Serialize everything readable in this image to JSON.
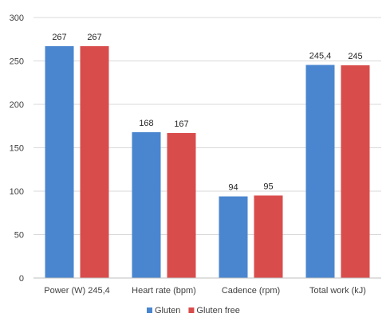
{
  "chart_data": {
    "type": "bar",
    "categories": [
      "Power (W) 245,4",
      "Heart rate (bpm)",
      "Cadence (rpm)",
      "Total work (kJ)"
    ],
    "series": [
      {
        "name": "Gluten",
        "values": [
          267,
          168,
          94,
          245.4
        ],
        "labels": [
          "267",
          "168",
          "94",
          "245,4"
        ],
        "color": "#4a86cf"
      },
      {
        "name": "Gluten free",
        "values": [
          267,
          167,
          95,
          245
        ],
        "labels": [
          "267",
          "167",
          "95",
          "245"
        ],
        "color": "#d94c4c"
      }
    ],
    "title": "",
    "xlabel": "",
    "ylabel": "",
    "ylim": [
      0,
      300
    ],
    "yticks": [
      0,
      50,
      100,
      150,
      200,
      250,
      300
    ],
    "grid": true,
    "legend": "bottom"
  }
}
